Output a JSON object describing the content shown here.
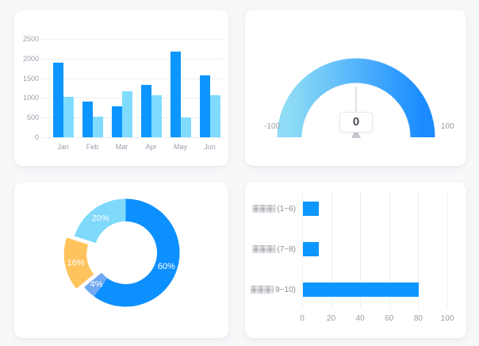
{
  "colors": {
    "page_bg": "#f7f8fa",
    "card_bg": "#ffffff",
    "grid_line": "#edeff2",
    "axis_text": "#9ba0ab",
    "series_blue": "#0d96ff",
    "series_light_blue": "#7fdcff",
    "gauge_start": "#8edcf6",
    "gauge_end": "#1a8cff",
    "gauge_needle": "#d5d8dc",
    "gauge_value_text": "#454a54",
    "donut_blue": "#0d90ff",
    "donut_periwinkle": "#6fa8f0",
    "donut_orange": "#ffc35e",
    "donut_cyan": "#7fd9fb",
    "donut_label_text": "#ffffff",
    "hbar_blue": "#0d96ff"
  },
  "chart_data": [
    {
      "type": "bar",
      "name": "grouped-column-chart",
      "categories": [
        "Jan",
        "Feb",
        "Mar",
        "Apr",
        "May",
        "Jun"
      ],
      "series": [
        {
          "name": "series-a",
          "color": "#0d96ff",
          "values": [
            1900,
            900,
            780,
            1330,
            2170,
            1580
          ]
        },
        {
          "name": "series-b",
          "color": "#7fdcff",
          "values": [
            1020,
            520,
            1160,
            1070,
            510,
            1070
          ]
        }
      ],
      "ylim": [
        0,
        2500
      ],
      "yticks": [
        0,
        500,
        1000,
        1500,
        2000,
        2500
      ],
      "grid": true,
      "legend": "none"
    },
    {
      "type": "gauge",
      "name": "gauge-chart",
      "min": -100,
      "max": 100,
      "value": 0,
      "min_label": "-100",
      "max_label": "100",
      "value_label": "0"
    },
    {
      "type": "pie",
      "name": "donut-chart",
      "donut": true,
      "start_angle_deg_from_top": 0,
      "slices": [
        {
          "label": "60%",
          "value": 60,
          "color": "#0d90ff",
          "exploded": false
        },
        {
          "label": "4%",
          "value": 4,
          "color": "#6fa8f0",
          "exploded": false
        },
        {
          "label": "16%",
          "value": 16,
          "color": "#ffc35e",
          "exploded": true
        },
        {
          "label": "20%",
          "value": 20,
          "color": "#7fd9fb",
          "exploded": false
        }
      ]
    },
    {
      "type": "bar",
      "name": "horizontal-bar-chart",
      "orientation": "horizontal",
      "categories": [
        {
          "prefix_redacted": true,
          "visible_text": "(1~6)"
        },
        {
          "prefix_redacted": true,
          "visible_text": "(7~8)"
        },
        {
          "prefix_redacted": true,
          "visible_text": "9~10)"
        }
      ],
      "values": [
        11,
        11,
        80
      ],
      "xlim": [
        0,
        100
      ],
      "xticks": [
        0,
        20,
        40,
        60,
        80,
        100
      ],
      "color": "#0d96ff",
      "grid": true
    }
  ]
}
